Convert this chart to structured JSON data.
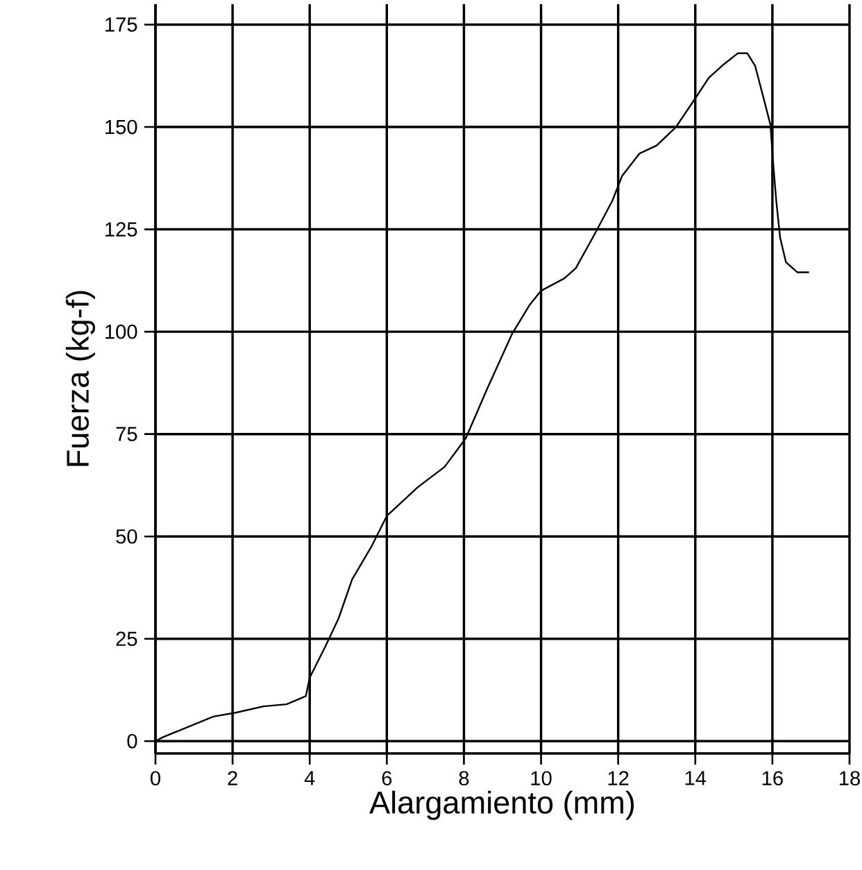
{
  "chart_data": {
    "type": "line",
    "xlabel": "Alargamiento (mm)",
    "ylabel": "Fuerza (kg-f)",
    "xlim": [
      0,
      18
    ],
    "ylim": [
      -3,
      180
    ],
    "xticks": [
      0,
      2,
      4,
      6,
      8,
      10,
      12,
      14,
      16,
      18
    ],
    "yticks": [
      0,
      25,
      50,
      75,
      100,
      125,
      150,
      175
    ],
    "grid": true,
    "series": [
      {
        "color": "#000000",
        "x": [
          0,
          0.2,
          1.5,
          2.1,
          2.8,
          3.4,
          3.9,
          4.0,
          4.4,
          4.75,
          5.1,
          5.6,
          6.0,
          6.8,
          7.5,
          8.05,
          8.6,
          9.25,
          9.7,
          10.0,
          10.6,
          10.9,
          11.4,
          11.85,
          12.1,
          12.55,
          13.0,
          13.5,
          14.0,
          14.35,
          14.7,
          15.1,
          15.35,
          15.55,
          15.8,
          15.95,
          16.0,
          16.1,
          16.2,
          16.35,
          16.65,
          16.95
        ],
        "values": [
          0,
          1,
          6,
          7,
          8.5,
          9,
          11,
          15.5,
          23,
          30,
          39.5,
          47.5,
          55,
          62,
          67,
          74,
          86,
          99.5,
          106.5,
          110,
          113,
          115.5,
          124,
          132,
          138,
          143.5,
          145.5,
          150,
          157,
          162,
          165,
          168,
          168,
          165,
          156,
          150.5,
          143.5,
          132,
          123,
          117,
          114.5,
          114.5
        ]
      }
    ]
  }
}
